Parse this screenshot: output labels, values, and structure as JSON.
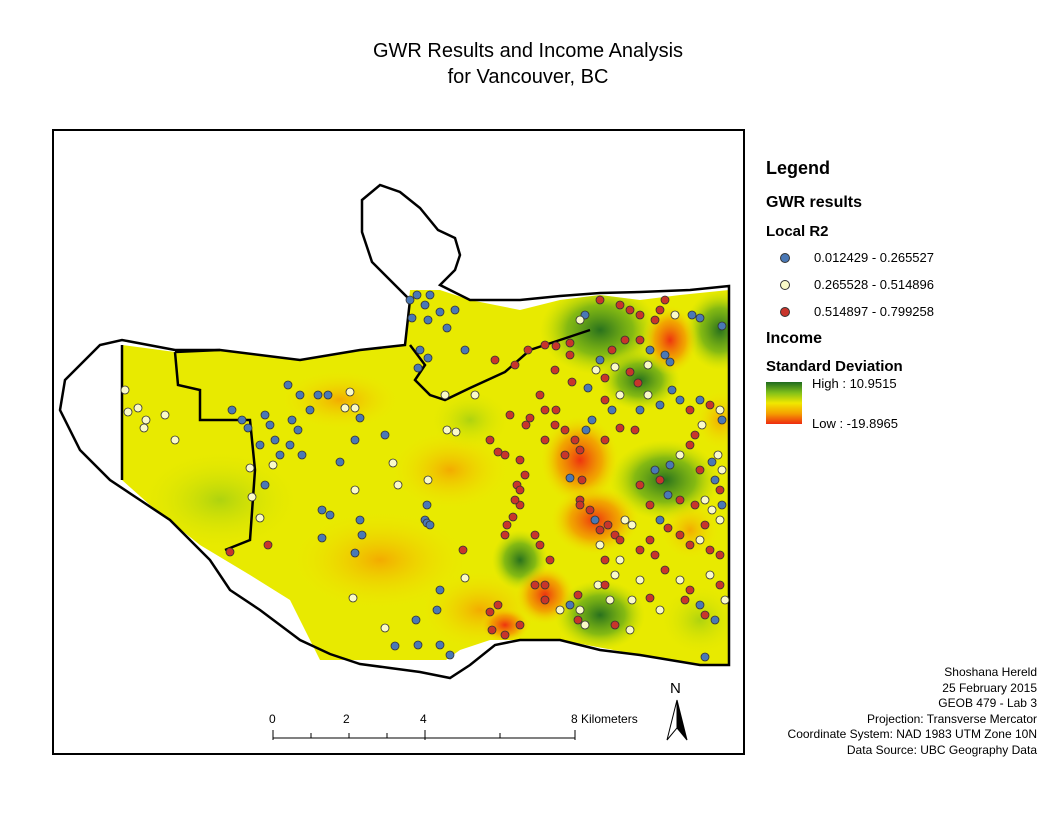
{
  "title": {
    "line1": "GWR Results and Income Analysis",
    "line2": "for Vancouver, BC"
  },
  "legend": {
    "heading": "Legend",
    "gwr_heading": "GWR results",
    "r2_heading": "Local R2",
    "r2_classes": [
      {
        "label": "0.012429 - 0.265527",
        "color": "#4a78b5"
      },
      {
        "label": "0.265528 - 0.514896",
        "color": "#fafac8"
      },
      {
        "label": "0.514897 - 0.799258",
        "color": "#c8352b"
      }
    ],
    "income_heading": "Income",
    "sd_heading": "Standard Deviation",
    "high_label": "High : 10.9515",
    "low_label": "Low : -19.8965",
    "ramp_colors": [
      "#1f6b1f",
      "#7fbf1a",
      "#f0e800",
      "#f5a000",
      "#ee2a10"
    ]
  },
  "scale_bar": {
    "ticks": [
      "0",
      "2",
      "4",
      "8 Kilometers"
    ]
  },
  "north_arrow": {
    "label": "N",
    "icon": "north-arrow-icon"
  },
  "credits": [
    "Shoshana Hereld",
    "25 February 2015",
    "GEOB 479 - Lab 3",
    "Projection: Transverse Mercator",
    "Coordinate System: NAD 1983 UTM Zone 10N",
    "Data Source: UBC Geography Data"
  ]
}
